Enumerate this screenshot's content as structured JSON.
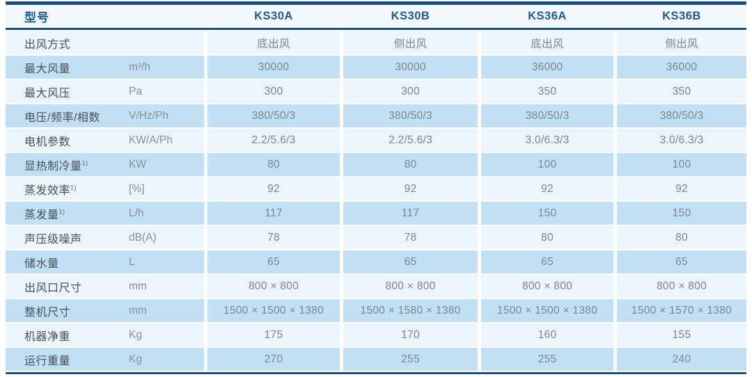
{
  "table": {
    "header": {
      "label": "型号",
      "models": [
        "KS30A",
        "KS30B",
        "KS36A",
        "KS36B"
      ]
    },
    "rows": [
      {
        "label": "出风方式",
        "sup": "",
        "unit": "",
        "values": [
          "底出风",
          "侧出风",
          "底出风",
          "侧出风"
        ]
      },
      {
        "label": "最大风量",
        "sup": "",
        "unit": "m³/h",
        "values": [
          "30000",
          "30000",
          "36000",
          "36000"
        ]
      },
      {
        "label": "最大风压",
        "sup": "",
        "unit": "Pa",
        "values": [
          "300",
          "300",
          "350",
          "350"
        ]
      },
      {
        "label": "电压/频率/相数",
        "sup": "",
        "unit": "V/Hz/Ph",
        "values": [
          "380/50/3",
          "380/50/3",
          "380/50/3",
          "380/50/3"
        ]
      },
      {
        "label": "电机参数",
        "sup": "",
        "unit": "KW/A/Ph",
        "values": [
          "2.2/5.6/3",
          "2.2/5.6/3",
          "3.0/6.3/3",
          "3.0/6.3/3"
        ]
      },
      {
        "label": "显热制冷量",
        "sup": "1)",
        "unit": "KW",
        "values": [
          "80",
          "80",
          "100",
          "100"
        ]
      },
      {
        "label": "蒸发效率",
        "sup": "1)",
        "unit": "[%]",
        "values": [
          "92",
          "92",
          "92",
          "92"
        ]
      },
      {
        "label": "蒸发量",
        "sup": "1)",
        "unit": "L/h",
        "values": [
          "117",
          "117",
          "150",
          "150"
        ]
      },
      {
        "label": "声压级噪声",
        "sup": "",
        "unit": "dB(A)",
        "values": [
          "78",
          "78",
          "80",
          "80"
        ]
      },
      {
        "label": "储水量",
        "sup": "",
        "unit": "L",
        "values": [
          "65",
          "65",
          "65",
          "65"
        ]
      },
      {
        "label": "出风口尺寸",
        "sup": "",
        "unit": "mm",
        "values": [
          "800 × 800",
          "800 × 800",
          "800 × 800",
          "800 × 800"
        ]
      },
      {
        "label": "整机尺寸",
        "sup": "",
        "unit": "mm",
        "values": [
          "1500 × 1500 × 1380",
          "1500 × 1580 × 1380",
          "1500 × 1500 × 1380",
          "1500 × 1570 × 1380"
        ]
      },
      {
        "label": "机器净重",
        "sup": "",
        "unit": "Kg",
        "values": [
          "175",
          "170",
          "160",
          "155"
        ]
      },
      {
        "label": "运行重量",
        "sup": "",
        "unit": "Kg",
        "values": [
          "270",
          "255",
          "255",
          "240"
        ]
      }
    ],
    "colors": {
      "accent_navy": "#1a4f80",
      "header_text": "#1f5c90",
      "row_blue": "#c2e0f4",
      "row_light": "#ecf5fb"
    }
  }
}
